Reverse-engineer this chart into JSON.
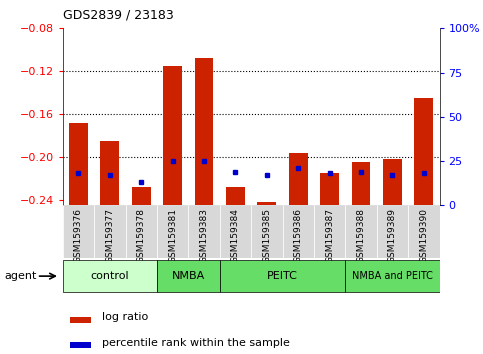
{
  "title": "GDS2839 / 23183",
  "samples": [
    "GSM159376",
    "GSM159377",
    "GSM159378",
    "GSM159381",
    "GSM159383",
    "GSM159384",
    "GSM159385",
    "GSM159386",
    "GSM159387",
    "GSM159388",
    "GSM159389",
    "GSM159390"
  ],
  "log_ratio": [
    -0.168,
    -0.185,
    -0.228,
    -0.115,
    -0.108,
    -0.228,
    -0.242,
    -0.196,
    -0.215,
    -0.205,
    -0.202,
    -0.145
  ],
  "percentile_rank": [
    18,
    17,
    13,
    25,
    25,
    19,
    17,
    21,
    18,
    19,
    17,
    18
  ],
  "ylim_left": [
    -0.245,
    -0.08
  ],
  "ylim_right": [
    0,
    100
  ],
  "yticks_left": [
    -0.24,
    -0.2,
    -0.16,
    -0.12,
    -0.08
  ],
  "yticks_right": [
    0,
    25,
    50,
    75,
    100
  ],
  "ytick_labels_right": [
    "0",
    "25",
    "50",
    "75",
    "100%"
  ],
  "grid_yticks": [
    -0.12,
    -0.16,
    -0.2
  ],
  "groups": [
    {
      "label": "control",
      "start": 0,
      "end": 3,
      "color": "#ccffcc"
    },
    {
      "label": "NMBA",
      "start": 3,
      "end": 5,
      "color": "#66dd66"
    },
    {
      "label": "PEITC",
      "start": 5,
      "end": 9,
      "color": "#66dd66"
    },
    {
      "label": "NMBA and PEITC",
      "start": 9,
      "end": 12,
      "color": "#66dd66"
    }
  ],
  "bar_color": "#cc2200",
  "dot_color": "#0000cc",
  "bar_width": 0.6,
  "background_color": "#ffffff",
  "plot_bg_color": "#ffffff",
  "agent_label": "agent",
  "legend_log_ratio": "log ratio",
  "legend_percentile": "percentile rank within the sample",
  "legend_square_red": "#cc2200",
  "legend_square_blue": "#0000cc"
}
